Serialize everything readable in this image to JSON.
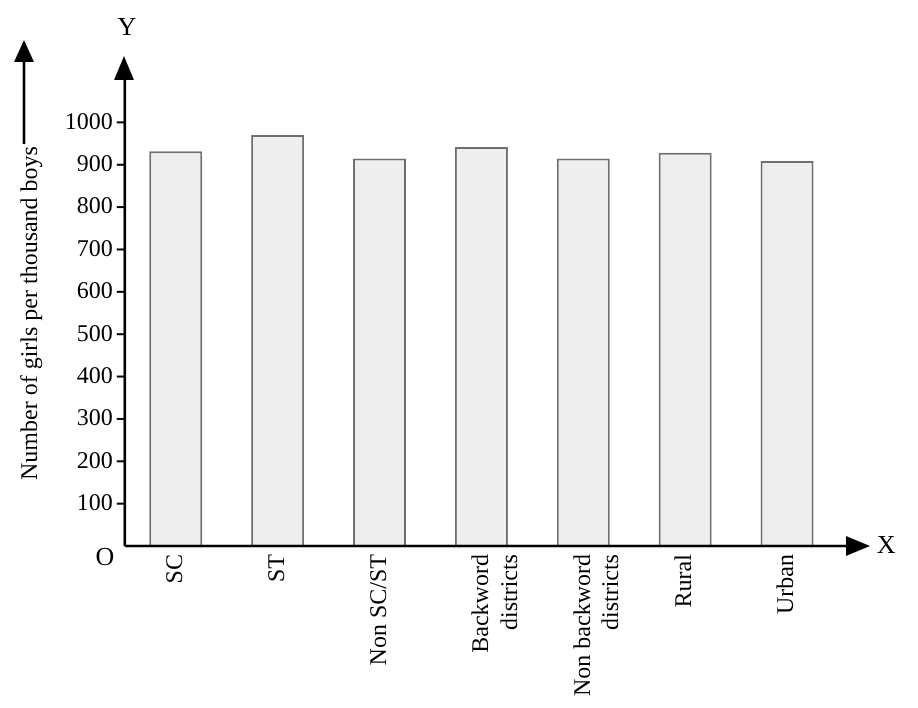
{
  "chart_data": {
    "type": "bar",
    "ylabel": "Number of girls per thousand boys",
    "categories": [
      "SC",
      "ST",
      "Non SC/ST",
      "Backword districts",
      "Non backword districts",
      "Rural",
      "Urban"
    ],
    "values": [
      932,
      970,
      915,
      942,
      915,
      928,
      909
    ],
    "color": "#eeeeee",
    "ylim": [
      0,
      1100
    ],
    "yticks": [
      100,
      200,
      300,
      400,
      500,
      600,
      700,
      800,
      900,
      1000
    ],
    "grid": false,
    "legend": false,
    "annotations": [
      "Y",
      "X",
      "O"
    ]
  }
}
